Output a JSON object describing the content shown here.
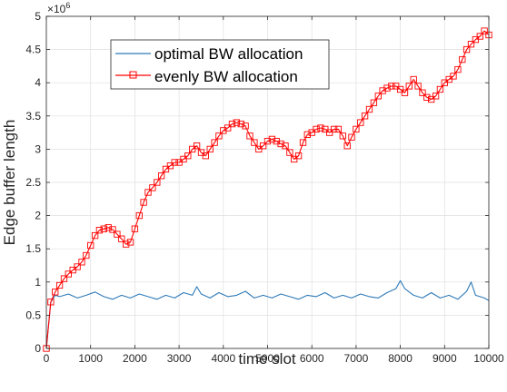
{
  "chart_data": {
    "type": "line",
    "xlabel": "time slot",
    "ylabel": "Edge buffer length",
    "xlim": [
      0,
      10000
    ],
    "ylim": [
      0,
      5000000
    ],
    "x_ticks": [
      0,
      1000,
      2000,
      3000,
      4000,
      5000,
      6000,
      7000,
      8000,
      9000,
      10000
    ],
    "x_tick_labels": [
      "0",
      "1000",
      "2000",
      "3000",
      "4000",
      "5000",
      "6000",
      "7000",
      "8000",
      "9000",
      "10000"
    ],
    "y_ticks": [
      0,
      500000,
      1000000,
      1500000,
      2000000,
      2500000,
      3000000,
      3500000,
      4000000,
      4500000,
      5000000
    ],
    "y_tick_labels": [
      "0",
      "0.5",
      "1",
      "1.5",
      "2",
      "2.5",
      "3",
      "3.5",
      "4",
      "4.5",
      "5"
    ],
    "y_exponent_base": "×10",
    "y_exponent_power": "6",
    "grid": true,
    "legend_position": "top-center",
    "series": [
      {
        "name": "optimal BW allocation",
        "color": "#2f7ab8",
        "marker": "none",
        "x": [
          0,
          100,
          200,
          300,
          500,
          700,
          900,
          1100,
          1300,
          1500,
          1700,
          1900,
          2100,
          2300,
          2500,
          2700,
          2900,
          3100,
          3300,
          3400,
          3500,
          3700,
          3900,
          4100,
          4300,
          4500,
          4700,
          4900,
          5100,
          5300,
          5500,
          5700,
          5900,
          6100,
          6300,
          6500,
          6700,
          6900,
          7100,
          7300,
          7500,
          7700,
          7900,
          8000,
          8100,
          8300,
          8500,
          8700,
          8900,
          9100,
          9300,
          9500,
          9600,
          9700,
          9900,
          10000
        ],
        "values": [
          0,
          700000,
          800000,
          780000,
          820000,
          760000,
          800000,
          850000,
          780000,
          740000,
          800000,
          760000,
          820000,
          780000,
          740000,
          800000,
          760000,
          840000,
          800000,
          930000,
          820000,
          760000,
          840000,
          780000,
          800000,
          860000,
          760000,
          800000,
          760000,
          820000,
          780000,
          740000,
          800000,
          780000,
          840000,
          760000,
          800000,
          760000,
          820000,
          780000,
          760000,
          840000,
          900000,
          1020000,
          900000,
          800000,
          760000,
          840000,
          760000,
          800000,
          740000,
          860000,
          1000000,
          800000,
          760000,
          720000
        ]
      },
      {
        "name": "evenly BW allocation",
        "color": "#ff0000",
        "marker": "square",
        "x": [
          0,
          100,
          200,
          300,
          400,
          500,
          600,
          700,
          800,
          900,
          1000,
          1100,
          1200,
          1300,
          1400,
          1500,
          1600,
          1700,
          1800,
          1900,
          2000,
          2100,
          2200,
          2300,
          2400,
          2500,
          2600,
          2700,
          2800,
          2900,
          3000,
          3100,
          3200,
          3300,
          3400,
          3500,
          3600,
          3700,
          3800,
          3900,
          4000,
          4100,
          4200,
          4300,
          4400,
          4500,
          4600,
          4700,
          4800,
          4900,
          5000,
          5100,
          5200,
          5300,
          5400,
          5500,
          5600,
          5700,
          5800,
          5900,
          6000,
          6100,
          6200,
          6300,
          6400,
          6500,
          6600,
          6700,
          6800,
          6900,
          7000,
          7100,
          7200,
          7300,
          7400,
          7500,
          7600,
          7700,
          7800,
          7900,
          8000,
          8100,
          8200,
          8300,
          8400,
          8500,
          8600,
          8700,
          8800,
          8900,
          9000,
          9100,
          9200,
          9300,
          9400,
          9500,
          9600,
          9700,
          9800,
          9900,
          10000
        ],
        "values": [
          0,
          700000,
          850000,
          950000,
          1050000,
          1120000,
          1180000,
          1230000,
          1300000,
          1400000,
          1550000,
          1700000,
          1780000,
          1800000,
          1820000,
          1790000,
          1720000,
          1650000,
          1570000,
          1600000,
          1800000,
          2000000,
          2200000,
          2350000,
          2420000,
          2500000,
          2600000,
          2700000,
          2750000,
          2800000,
          2800000,
          2850000,
          2900000,
          3000000,
          3050000,
          2950000,
          2900000,
          3000000,
          3100000,
          3200000,
          3280000,
          3320000,
          3380000,
          3400000,
          3380000,
          3350000,
          3200000,
          3100000,
          3000000,
          3050000,
          3120000,
          3150000,
          3120000,
          3080000,
          3050000,
          2950000,
          2850000,
          2900000,
          3100000,
          3220000,
          3250000,
          3300000,
          3320000,
          3300000,
          3250000,
          3300000,
          3300000,
          3200000,
          3050000,
          3180000,
          3300000,
          3400000,
          3500000,
          3600000,
          3700000,
          3800000,
          3880000,
          3920000,
          3950000,
          3950000,
          3900000,
          3850000,
          3950000,
          4050000,
          3950000,
          3850000,
          3780000,
          3750000,
          3800000,
          3900000,
          4000000,
          4050000,
          4100000,
          4200000,
          4350000,
          4500000,
          4580000,
          4650000,
          4700000,
          4780000,
          4720000
        ]
      }
    ]
  }
}
